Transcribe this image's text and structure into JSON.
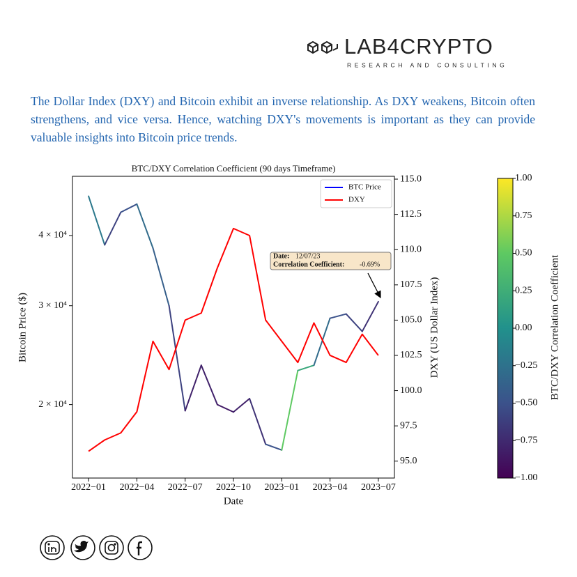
{
  "header": {
    "brand": "LAB4CRYPTO",
    "tagline": "RESEARCH AND CONSULTING"
  },
  "intro": "The Dollar Index (DXY) and Bitcoin exhibit an inverse relationship. As DXY weakens, Bitcoin often strengthens, and vice versa. Hence, watching DXY's movements is important as they can provide valuable insights into Bitcoin price trends.",
  "chart_data": {
    "type": "line",
    "title": "BTC/DXY Correlation Coefficient (90 days Timeframe)",
    "x_label": "Date",
    "y_label": "Bitcoin Price ($)",
    "y2_label": "DXY (US Dollar Index)",
    "x": [
      "2022-01",
      "2022-02",
      "2022-03",
      "2022-04",
      "2022-05",
      "2022-06",
      "2022-07",
      "2022-08",
      "2022-09",
      "2022-10",
      "2022-11",
      "2022-12",
      "2023-01",
      "2023-02",
      "2023-03",
      "2023-04",
      "2023-05",
      "2023-06",
      "2023-07"
    ],
    "xlim": [
      "2021-12",
      "2023-08"
    ],
    "xticks": [
      {
        "value": "2022-01",
        "label": "2022−01"
      },
      {
        "value": "2022-04",
        "label": "2022−04"
      },
      {
        "value": "2022-07",
        "label": "2022−07"
      },
      {
        "value": "2022-10",
        "label": "2022−10"
      },
      {
        "value": "2023-01",
        "label": "2023−01"
      },
      {
        "value": "2023-04",
        "label": "2023−04"
      },
      {
        "value": "2023-07",
        "label": "2023−07"
      }
    ],
    "y_log": true,
    "ylim": [
      14800,
      51000
    ],
    "yticks": [
      {
        "value": 20000,
        "label": "2 × 10⁴"
      },
      {
        "value": 30000,
        "label": "3 × 10⁴"
      },
      {
        "value": 40000,
        "label": "4 × 10⁴"
      }
    ],
    "y2lim": [
      93.8,
      115.2
    ],
    "y2ticks": [
      {
        "value": 95,
        "label": "95.0"
      },
      {
        "value": 97.5,
        "label": "97.5"
      },
      {
        "value": 100,
        "label": "100.0"
      },
      {
        "value": 102.5,
        "label": "102.5"
      },
      {
        "value": 105,
        "label": "105.0"
      },
      {
        "value": 107.5,
        "label": "107.5"
      },
      {
        "value": 110,
        "label": "110.0"
      },
      {
        "value": 112.5,
        "label": "112.5"
      },
      {
        "value": 115,
        "label": "115.0"
      }
    ],
    "series": [
      {
        "name": "BTC Price",
        "color": "#0000ff",
        "values": [
          47000,
          38500,
          44000,
          45500,
          38000,
          30000,
          19500,
          23500,
          20000,
          19400,
          20500,
          17000,
          16600,
          23000,
          23500,
          28500,
          29000,
          27000,
          30500
        ],
        "correlation": [
          -0.2,
          -0.6,
          -0.5,
          -0.3,
          -0.4,
          -0.6,
          -0.8,
          -0.8,
          -0.85,
          -0.8,
          -0.7,
          -0.5,
          0.5,
          0.2,
          -0.3,
          -0.5,
          -0.6,
          -0.7,
          -0.69
        ]
      },
      {
        "name": "DXY",
        "color": "#ff0000",
        "axis": "y2",
        "values": [
          95.7,
          96.5,
          97.0,
          98.5,
          103.5,
          101.5,
          105.0,
          105.5,
          108.7,
          111.5,
          111.0,
          105.0,
          103.5,
          102.0,
          104.8,
          102.5,
          102.0,
          104.0,
          102.5
        ]
      }
    ],
    "legend": "upper right",
    "colorbar": {
      "label": "BTC/DXY Correlation Coefficient",
      "colormap": "viridis",
      "clim": [
        -1,
        1
      ],
      "ticks": [
        {
          "value": -1,
          "label": "−1.00"
        },
        {
          "value": -0.75,
          "label": "−0.75"
        },
        {
          "value": -0.5,
          "label": "−0.50"
        },
        {
          "value": -0.25,
          "label": "−0.25"
        },
        {
          "value": 0,
          "label": "0.00"
        },
        {
          "value": 0.25,
          "label": "0.25"
        },
        {
          "value": 0.5,
          "label": "0.50"
        },
        {
          "value": 0.75,
          "label": "0.75"
        },
        {
          "value": 1,
          "label": "1.00"
        }
      ]
    },
    "annotation": {
      "date_label": "Date:",
      "date": "12/07/23",
      "coef_label": "Correlation Coefficient:",
      "coef": "-0.69%"
    }
  }
}
